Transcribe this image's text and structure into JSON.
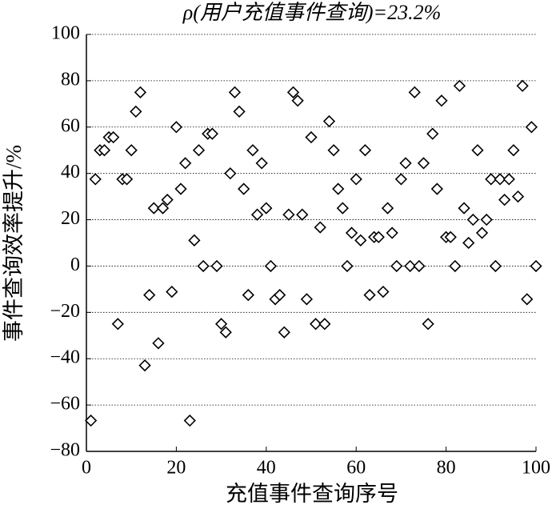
{
  "chart_data": {
    "type": "scatter",
    "title": "ρ(用户充值事件查询)=23.2%",
    "xlabel": "充值事件查询序号",
    "ylabel": "事件查询效率提升/%",
    "marker": "diamond",
    "color": "#000000",
    "grid": true,
    "xlim": [
      0,
      100
    ],
    "xticks": [
      0,
      20,
      40,
      60,
      80,
      100
    ],
    "ylim": [
      -80,
      100
    ],
    "yticks": [
      {
        "value": -80,
        "label": "−80"
      },
      {
        "value": -60,
        "label": "−60"
      },
      {
        "value": -40,
        "label": "−40"
      },
      {
        "value": -20,
        "label": "−20"
      },
      0,
      20,
      40,
      60,
      80,
      100
    ],
    "x": [
      1,
      2,
      3,
      4,
      5,
      6,
      7,
      8,
      9,
      10,
      11,
      12,
      13,
      14,
      15,
      16,
      17,
      18,
      19,
      20,
      21,
      22,
      23,
      24,
      25,
      26,
      27,
      28,
      29,
      30,
      31,
      32,
      33,
      34,
      35,
      36,
      37,
      38,
      39,
      40,
      41,
      42,
      43,
      44,
      45,
      46,
      47,
      48,
      49,
      50,
      51,
      52,
      53,
      54,
      55,
      56,
      57,
      58,
      59,
      60,
      61,
      62,
      63,
      64,
      65,
      66,
      67,
      68,
      69,
      70,
      71,
      72,
      73,
      74,
      75,
      76,
      77,
      78,
      79,
      80,
      81,
      82,
      83,
      84,
      85,
      86,
      87,
      88,
      89,
      90,
      91,
      92,
      93,
      94,
      95,
      96,
      97,
      98,
      99,
      100
    ],
    "values": [
      -66.7,
      37.5,
      50,
      50,
      55.6,
      55.6,
      -25,
      37.5,
      37.5,
      50,
      66.7,
      75,
      -42.9,
      -12.5,
      25,
      -33.3,
      25,
      28.6,
      -11.1,
      60,
      33.3,
      44.4,
      -66.7,
      11.1,
      50,
      0,
      57.1,
      57.1,
      0,
      -25,
      -28.6,
      40,
      75,
      66.7,
      33.3,
      -12.5,
      50,
      22.2,
      44.4,
      25,
      0,
      -14.3,
      -12.5,
      -28.6,
      22.2,
      75,
      71.4,
      22.2,
      -14.3,
      55.6,
      -25,
      16.7,
      -25,
      62.5,
      50,
      33.3,
      25,
      0,
      14.3,
      37.5,
      11.1,
      50,
      -12.5,
      12.5,
      12.5,
      -11.1,
      25,
      14.3,
      0,
      37.5,
      44.4,
      0,
      75,
      0,
      44.4,
      -25,
      57.1,
      33.3,
      71.4,
      12.5,
      12.5,
      0,
      77.8,
      25,
      10,
      20,
      50,
      14.3,
      20,
      37.5,
      0,
      37.5,
      28.6,
      37.5,
      50,
      30,
      77.8,
      -14.3,
      60,
      0
    ]
  }
}
